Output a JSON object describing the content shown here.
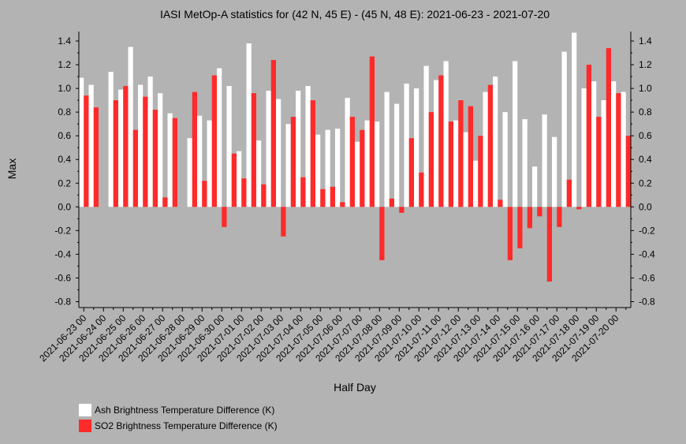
{
  "chart_data": {
    "type": "bar",
    "title": "IASI MetOp-A statistics for (42 N, 45 E) - (45 N, 48 E): 2021-06-23 - 2021-07-20",
    "xlabel": "Half Day",
    "ylabel": "Max",
    "ylim": [
      -0.85,
      1.48
    ],
    "yticks": [
      -0.8,
      -0.6,
      -0.4,
      -0.2,
      0.0,
      0.2,
      0.4,
      0.6,
      0.8,
      1.0,
      1.2,
      1.4
    ],
    "ytick_labels": [
      "-0.8",
      "-0.6",
      "-0.4",
      "-0.2",
      "0.0",
      "0.2",
      "0.4",
      "0.6",
      "0.8",
      "1.0",
      "1.2",
      "1.4"
    ],
    "xtick_labels": [
      "2021-06-23 00",
      "2021-06-24 00",
      "2021-06-25 00",
      "2021-06-26 00",
      "2021-06-27 00",
      "2021-06-28 00",
      "2021-06-29 00",
      "2021-06-30 00",
      "2021-07-01 00",
      "2021-07-02 00",
      "2021-07-03 00",
      "2021-07-04 00",
      "2021-07-05 00",
      "2021-07-06 00",
      "2021-07-07 00",
      "2021-07-08 00",
      "2021-07-09 00",
      "2021-07-10 00",
      "2021-07-11 00",
      "2021-07-12 00",
      "2021-07-13 00",
      "2021-07-14 00",
      "2021-07-15 00",
      "2021-07-16 00",
      "2021-07-17 00",
      "2021-07-18 00",
      "2021-07-19 00",
      "2021-07-20 00"
    ],
    "grid": false,
    "legend_position": "bottom-left",
    "series": [
      {
        "name": "Ash Brightness Temperature Difference (K)",
        "color": "#ffffff",
        "values": [
          1.09,
          1.03,
          null,
          1.14,
          0.99,
          1.35,
          1.03,
          1.1,
          0.96,
          0.79,
          null,
          0.58,
          0.77,
          0.73,
          1.17,
          1.02,
          0.47,
          1.38,
          0.56,
          0.98,
          0.91,
          0.7,
          0.98,
          1.02,
          0.61,
          0.65,
          0.66,
          0.92,
          0.55,
          0.73,
          0.72,
          0.97,
          0.87,
          1.04,
          1.0,
          1.19,
          1.07,
          1.23,
          0.73,
          0.63,
          0.39,
          0.97,
          1.1,
          0.8,
          1.23,
          0.74,
          0.34,
          0.78,
          0.59,
          1.31,
          1.47,
          1.0,
          1.06,
          0.9,
          1.06,
          0.97
        ]
      },
      {
        "name": "SO2 Brightness Temperature Difference (K)",
        "color": "#ff2a2a",
        "values": [
          0.94,
          0.84,
          null,
          0.9,
          1.02,
          0.65,
          0.93,
          0.82,
          0.08,
          0.75,
          null,
          0.97,
          0.22,
          1.11,
          -0.17,
          0.45,
          0.24,
          0.96,
          0.19,
          1.24,
          -0.25,
          0.76,
          0.25,
          0.9,
          0.15,
          0.17,
          0.04,
          0.76,
          0.65,
          1.27,
          -0.45,
          0.07,
          -0.05,
          0.58,
          0.29,
          0.8,
          1.11,
          0.72,
          0.9,
          0.85,
          0.6,
          1.03,
          0.06,
          -0.45,
          -0.35,
          -0.18,
          -0.08,
          -0.63,
          -0.17,
          0.23,
          -0.02,
          1.2,
          0.76,
          1.34,
          0.96,
          0.6
        ]
      }
    ]
  },
  "legend": {
    "ash_label": "Ash Brightness Temperature Difference (K)",
    "so2_label": "SO2 Brightness Temperature Difference (K)",
    "ash_color": "#ffffff",
    "so2_color": "#ff2a2a"
  },
  "colors": {
    "background": "#b3b3b3",
    "axis": "#000000"
  }
}
